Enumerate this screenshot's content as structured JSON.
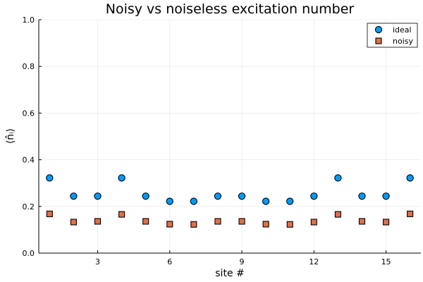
{
  "chart_data": {
    "type": "scatter",
    "title": "Noisy vs noiseless excitation number",
    "xlabel": "site #",
    "ylabel": "⟨n̂ᵢ⟩",
    "xlim": [
      0.55,
      16.45
    ],
    "ylim": [
      0,
      1
    ],
    "xticks": [
      3,
      6,
      9,
      12,
      15
    ],
    "yticks": [
      0.0,
      0.2,
      0.4,
      0.6,
      0.8,
      1.0
    ],
    "ytick_labels": [
      "0.0",
      "0.2",
      "0.4",
      "0.6",
      "0.8",
      "1.0"
    ],
    "grid": true,
    "legend_position": "top-right",
    "series": [
      {
        "name": "ideal",
        "marker": "circle",
        "color": "#009AFA",
        "x": [
          1,
          2,
          3,
          4,
          5,
          6,
          7,
          8,
          9,
          10,
          11,
          12,
          13,
          14,
          15,
          16
        ],
        "values": [
          0.322,
          0.244,
          0.244,
          0.322,
          0.244,
          0.222,
          0.222,
          0.244,
          0.244,
          0.222,
          0.222,
          0.244,
          0.322,
          0.244,
          0.244,
          0.322
        ]
      },
      {
        "name": "noisy",
        "marker": "square",
        "color": "#E36F47",
        "x": [
          1,
          2,
          3,
          4,
          5,
          6,
          7,
          8,
          9,
          10,
          11,
          12,
          13,
          14,
          15,
          16
        ],
        "values": [
          0.168,
          0.133,
          0.136,
          0.166,
          0.136,
          0.124,
          0.123,
          0.136,
          0.136,
          0.124,
          0.123,
          0.133,
          0.166,
          0.136,
          0.133,
          0.168
        ]
      }
    ]
  }
}
